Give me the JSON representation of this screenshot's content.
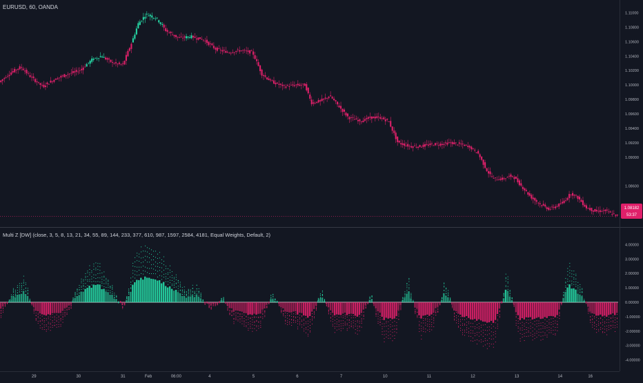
{
  "header": {
    "symbol_label": "EURUSD, 60, OANDA",
    "indicator_label": "Multi Z [DW] (close, 3, 5, 8, 13, 21, 34, 55, 89, 144, 233, 377, 610, 987, 1597, 2584, 4181, Equal Weights, Default, 2)"
  },
  "price_tag": {
    "price": "1.08182",
    "countdown": "53:37"
  },
  "colors": {
    "background": "#131722",
    "up": "#26d9a6",
    "down": "#e0206a",
    "axis_text": "#b2b5be",
    "divider": "#363a45"
  },
  "chart_data": [
    {
      "type": "candlestick",
      "title": "EURUSD, 60, OANDA",
      "ylim": [
        1.081,
        1.111
      ],
      "y_ticks": [
        "1.11000",
        "1.10800",
        "1.10600",
        "1.10400",
        "1.10200",
        "1.10000",
        "1.09800",
        "1.09600",
        "1.09400",
        "1.09200",
        "1.09000",
        "1.08600",
        "1.08200"
      ],
      "y_tick_values": [
        1.11,
        1.108,
        1.106,
        1.104,
        1.102,
        1.1,
        1.098,
        1.096,
        1.094,
        1.092,
        1.09,
        1.086,
        1.082
      ],
      "x_ticks": [
        "29",
        "30",
        "31",
        "Feb",
        "06:00",
        "4",
        "5",
        "6",
        "7",
        "10",
        "11",
        "12",
        "13",
        "14",
        "16"
      ],
      "x_tick_positions": [
        0.055,
        0.127,
        0.199,
        0.24,
        0.285,
        0.339,
        0.41,
        0.481,
        0.552,
        0.623,
        0.694,
        0.765,
        0.836,
        0.906,
        0.955
      ],
      "close_path": [
        [
          0.0,
          1.1004
        ],
        [
          0.02,
          1.1018
        ],
        [
          0.035,
          1.1025
        ],
        [
          0.05,
          1.1012
        ],
        [
          0.07,
          1.0998
        ],
        [
          0.09,
          1.1008
        ],
        [
          0.11,
          1.1015
        ],
        [
          0.13,
          1.102
        ],
        [
          0.15,
          1.1035
        ],
        [
          0.165,
          1.104
        ],
        [
          0.185,
          1.103
        ],
        [
          0.2,
          1.1028
        ],
        [
          0.215,
          1.106
        ],
        [
          0.225,
          1.1085
        ],
        [
          0.238,
          1.1098
        ],
        [
          0.255,
          1.1092
        ],
        [
          0.27,
          1.1075
        ],
        [
          0.29,
          1.1065
        ],
        [
          0.31,
          1.1067
        ],
        [
          0.33,
          1.1063
        ],
        [
          0.35,
          1.105
        ],
        [
          0.37,
          1.1045
        ],
        [
          0.39,
          1.1048
        ],
        [
          0.41,
          1.1045
        ],
        [
          0.425,
          1.1015
        ],
        [
          0.44,
          1.1005
        ],
        [
          0.46,
          1.0998
        ],
        [
          0.48,
          1.1
        ],
        [
          0.495,
          1.1
        ],
        [
          0.505,
          1.0975
        ],
        [
          0.52,
          1.0978
        ],
        [
          0.535,
          1.0985
        ],
        [
          0.55,
          1.097
        ],
        [
          0.565,
          1.0955
        ],
        [
          0.585,
          1.095
        ],
        [
          0.6,
          1.0955
        ],
        [
          0.615,
          1.0955
        ],
        [
          0.63,
          1.095
        ],
        [
          0.645,
          1.092
        ],
        [
          0.665,
          1.0915
        ],
        [
          0.68,
          1.0915
        ],
        [
          0.7,
          1.0918
        ],
        [
          0.715,
          1.0918
        ],
        [
          0.73,
          1.092
        ],
        [
          0.745,
          1.0918
        ],
        [
          0.76,
          1.0915
        ],
        [
          0.775,
          1.0905
        ],
        [
          0.79,
          1.088
        ],
        [
          0.8,
          1.087
        ],
        [
          0.815,
          1.087
        ],
        [
          0.83,
          1.0875
        ],
        [
          0.845,
          1.086
        ],
        [
          0.86,
          1.0845
        ],
        [
          0.875,
          1.0835
        ],
        [
          0.89,
          1.0828
        ],
        [
          0.91,
          1.0836
        ],
        [
          0.925,
          1.085
        ],
        [
          0.935,
          1.0845
        ],
        [
          0.95,
          1.083
        ],
        [
          0.965,
          1.0825
        ],
        [
          0.98,
          1.0826
        ],
        [
          1.0,
          1.08182
        ]
      ],
      "up_segments": [
        [
          0.14,
          0.17
        ],
        [
          0.215,
          0.265
        ],
        [
          0.3,
          0.31
        ]
      ]
    },
    {
      "type": "bar",
      "title": "Multi Z [DW]",
      "ylim": [
        -4.4,
        4.4
      ],
      "y_ticks": [
        "4.00000",
        "3.00000",
        "2.00000",
        "1.00000",
        "0.00000",
        "-1.00000",
        "-2.00000",
        "-3.00000",
        "-4.00000"
      ],
      "y_tick_values": [
        4,
        3,
        2,
        1,
        0,
        -1,
        -2,
        -3,
        -4
      ],
      "envelope": [
        [
          0.0,
          -1.3
        ],
        [
          0.02,
          0.8
        ],
        [
          0.04,
          1.6
        ],
        [
          0.06,
          -1.5
        ],
        [
          0.08,
          -2.0
        ],
        [
          0.1,
          -1.6
        ],
        [
          0.12,
          0.3
        ],
        [
          0.14,
          2.4
        ],
        [
          0.16,
          2.6
        ],
        [
          0.18,
          1.2
        ],
        [
          0.2,
          -0.6
        ],
        [
          0.22,
          3.6
        ],
        [
          0.24,
          3.8
        ],
        [
          0.26,
          3.2
        ],
        [
          0.28,
          2.0
        ],
        [
          0.3,
          0.8
        ],
        [
          0.32,
          1.0
        ],
        [
          0.34,
          -0.5
        ],
        [
          0.36,
          0.2
        ],
        [
          0.38,
          -1.4
        ],
        [
          0.4,
          -1.8
        ],
        [
          0.42,
          -2.0
        ],
        [
          0.44,
          0.9
        ],
        [
          0.46,
          -1.2
        ],
        [
          0.48,
          -1.6
        ],
        [
          0.5,
          -2.2
        ],
        [
          0.52,
          0.8
        ],
        [
          0.54,
          -2.0
        ],
        [
          0.56,
          -1.8
        ],
        [
          0.58,
          -2.2
        ],
        [
          0.6,
          0.6
        ],
        [
          0.62,
          -2.6
        ],
        [
          0.64,
          -2.3
        ],
        [
          0.66,
          1.8
        ],
        [
          0.68,
          -2.3
        ],
        [
          0.7,
          -2.0
        ],
        [
          0.72,
          1.5
        ],
        [
          0.74,
          -1.9
        ],
        [
          0.76,
          -2.4
        ],
        [
          0.78,
          -2.8
        ],
        [
          0.8,
          -3.2
        ],
        [
          0.82,
          2.2
        ],
        [
          0.84,
          -2.6
        ],
        [
          0.86,
          -2.5
        ],
        [
          0.88,
          -2.4
        ],
        [
          0.9,
          -2.2
        ],
        [
          0.92,
          2.8
        ],
        [
          0.94,
          1.0
        ],
        [
          0.96,
          -2.0
        ],
        [
          0.98,
          -2.1
        ],
        [
          1.0,
          -1.8
        ]
      ]
    }
  ]
}
